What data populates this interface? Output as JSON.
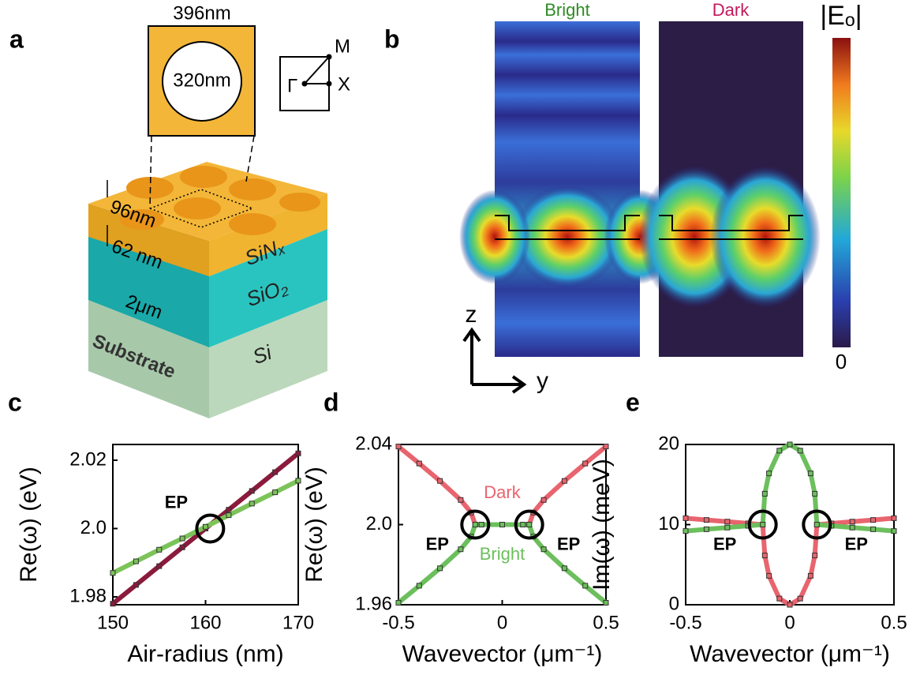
{
  "panels": {
    "letters": [
      "a",
      "b",
      "c",
      "d",
      "e"
    ],
    "a": {
      "inset_size": "396nm",
      "inset_hole": "320nm",
      "bz_m": "M",
      "bz_gamma": "Γ",
      "bz_x": "X",
      "thickness_etch": "96nm",
      "thickness_slab": "62 nm",
      "layer_top": "SiNₓ",
      "layer_mid": "SiO₂",
      "layer_mid_thickness": "2μm",
      "layer_bottom": "Si",
      "substrate": "Substrate"
    },
    "b": {
      "map_left_title": "Bright",
      "map_right_title": "Dark",
      "colorbar_label": "|Eₒ|",
      "colorbar_min": "0",
      "axis_z": "z",
      "axis_y": "y"
    }
  },
  "chart_data": [
    {
      "type": "line",
      "xlabel": "Air-radius (nm)",
      "ylabel": "Re(ω) (eV)",
      "x": [
        150,
        152.5,
        155,
        157.5,
        160,
        162.5,
        165,
        167.5,
        170
      ],
      "series": [
        {
          "color": "#8b1a3c",
          "values": [
            1.978,
            1.9835,
            1.989,
            1.9945,
            2.0,
            2.0055,
            2.011,
            2.0165,
            2.022
          ]
        },
        {
          "color": "#7cc35a",
          "values": [
            1.987,
            1.9904,
            1.9938,
            1.9971,
            2.0005,
            2.0039,
            2.0073,
            2.0106,
            2.014
          ]
        }
      ],
      "xlim": [
        150,
        170
      ],
      "xticks": [
        150,
        160,
        170
      ],
      "ylim": [
        1.9777,
        2.0246
      ],
      "yticks": [
        1.98,
        {
          "value": 2,
          "label": "2.0"
        },
        2.02
      ],
      "annotations": [
        {
          "text": "EP",
          "x": 160.5,
          "y": 2.0
        }
      ]
    },
    {
      "type": "line",
      "xlabel": "Wavevector (μm⁻¹)",
      "ylabel": "Re(ω) (eV)",
      "x": [
        -0.5,
        -0.4,
        -0.3,
        -0.2,
        -0.15,
        -0.13,
        -0.1,
        0,
        0.1,
        0.13,
        0.15,
        0.2,
        0.3,
        0.4,
        0.5
      ],
      "series": [
        {
          "name": "Dark",
          "color": "#e8646e",
          "values": [
            2.039,
            2.0305,
            2.0218,
            2.0123,
            2.006,
            2.0,
            2.0,
            2.0,
            2.0,
            2.0,
            2.006,
            2.0123,
            2.0218,
            2.0305,
            2.039
          ]
        },
        {
          "name": "Bright",
          "color": "#6cbf5c",
          "values": [
            1.961,
            1.9695,
            1.9782,
            1.9877,
            1.994,
            2.0,
            2.0,
            2.0,
            2.0,
            2.0,
            1.994,
            1.9877,
            1.9782,
            1.9695,
            1.961
          ]
        }
      ],
      "xlim": [
        -0.5,
        0.5
      ],
      "xticks": [
        -0.5,
        0,
        0.5
      ],
      "ylim": [
        1.96,
        2.04
      ],
      "yticks": [
        1.96,
        {
          "value": 2,
          "label": "2.0"
        },
        2.04
      ],
      "annotations": [
        {
          "text": "EP",
          "x": -0.13,
          "y": 2.0
        },
        {
          "text": "EP",
          "x": 0.13,
          "y": 2.0
        }
      ]
    },
    {
      "type": "line",
      "xlabel": "Wavevector (μm⁻¹)",
      "ylabel": "Im(ω) (meV)",
      "x": [
        -0.5,
        -0.4,
        -0.3,
        -0.2,
        -0.13,
        -0.12,
        -0.1,
        -0.05,
        0,
        0.05,
        0.1,
        0.12,
        0.13,
        0.2,
        0.3,
        0.4,
        0.5
      ],
      "series": [
        {
          "color": "#e8646e",
          "values": [
            10.8,
            10.58,
            10.37,
            10.15,
            10,
            6.15,
            3.61,
            0.77,
            0,
            0.77,
            3.61,
            6.15,
            10,
            10.15,
            10.37,
            10.58,
            10.8
          ]
        },
        {
          "color": "#6cbf5c",
          "values": [
            9.2,
            9.42,
            9.63,
            9.85,
            10,
            13.85,
            16.39,
            19.23,
            20,
            19.23,
            16.39,
            13.85,
            10,
            9.85,
            9.63,
            9.42,
            9.2
          ]
        }
      ],
      "xlim": [
        -0.5,
        0.5
      ],
      "xticks": [
        -0.5,
        0,
        0.5
      ],
      "ylim": [
        0,
        20
      ],
      "yticks": [
        0,
        10,
        20
      ],
      "annotations": [
        {
          "text": "EP",
          "x": -0.13,
          "y": 10
        },
        {
          "text": "EP",
          "x": 0.13,
          "y": 10
        }
      ]
    }
  ]
}
